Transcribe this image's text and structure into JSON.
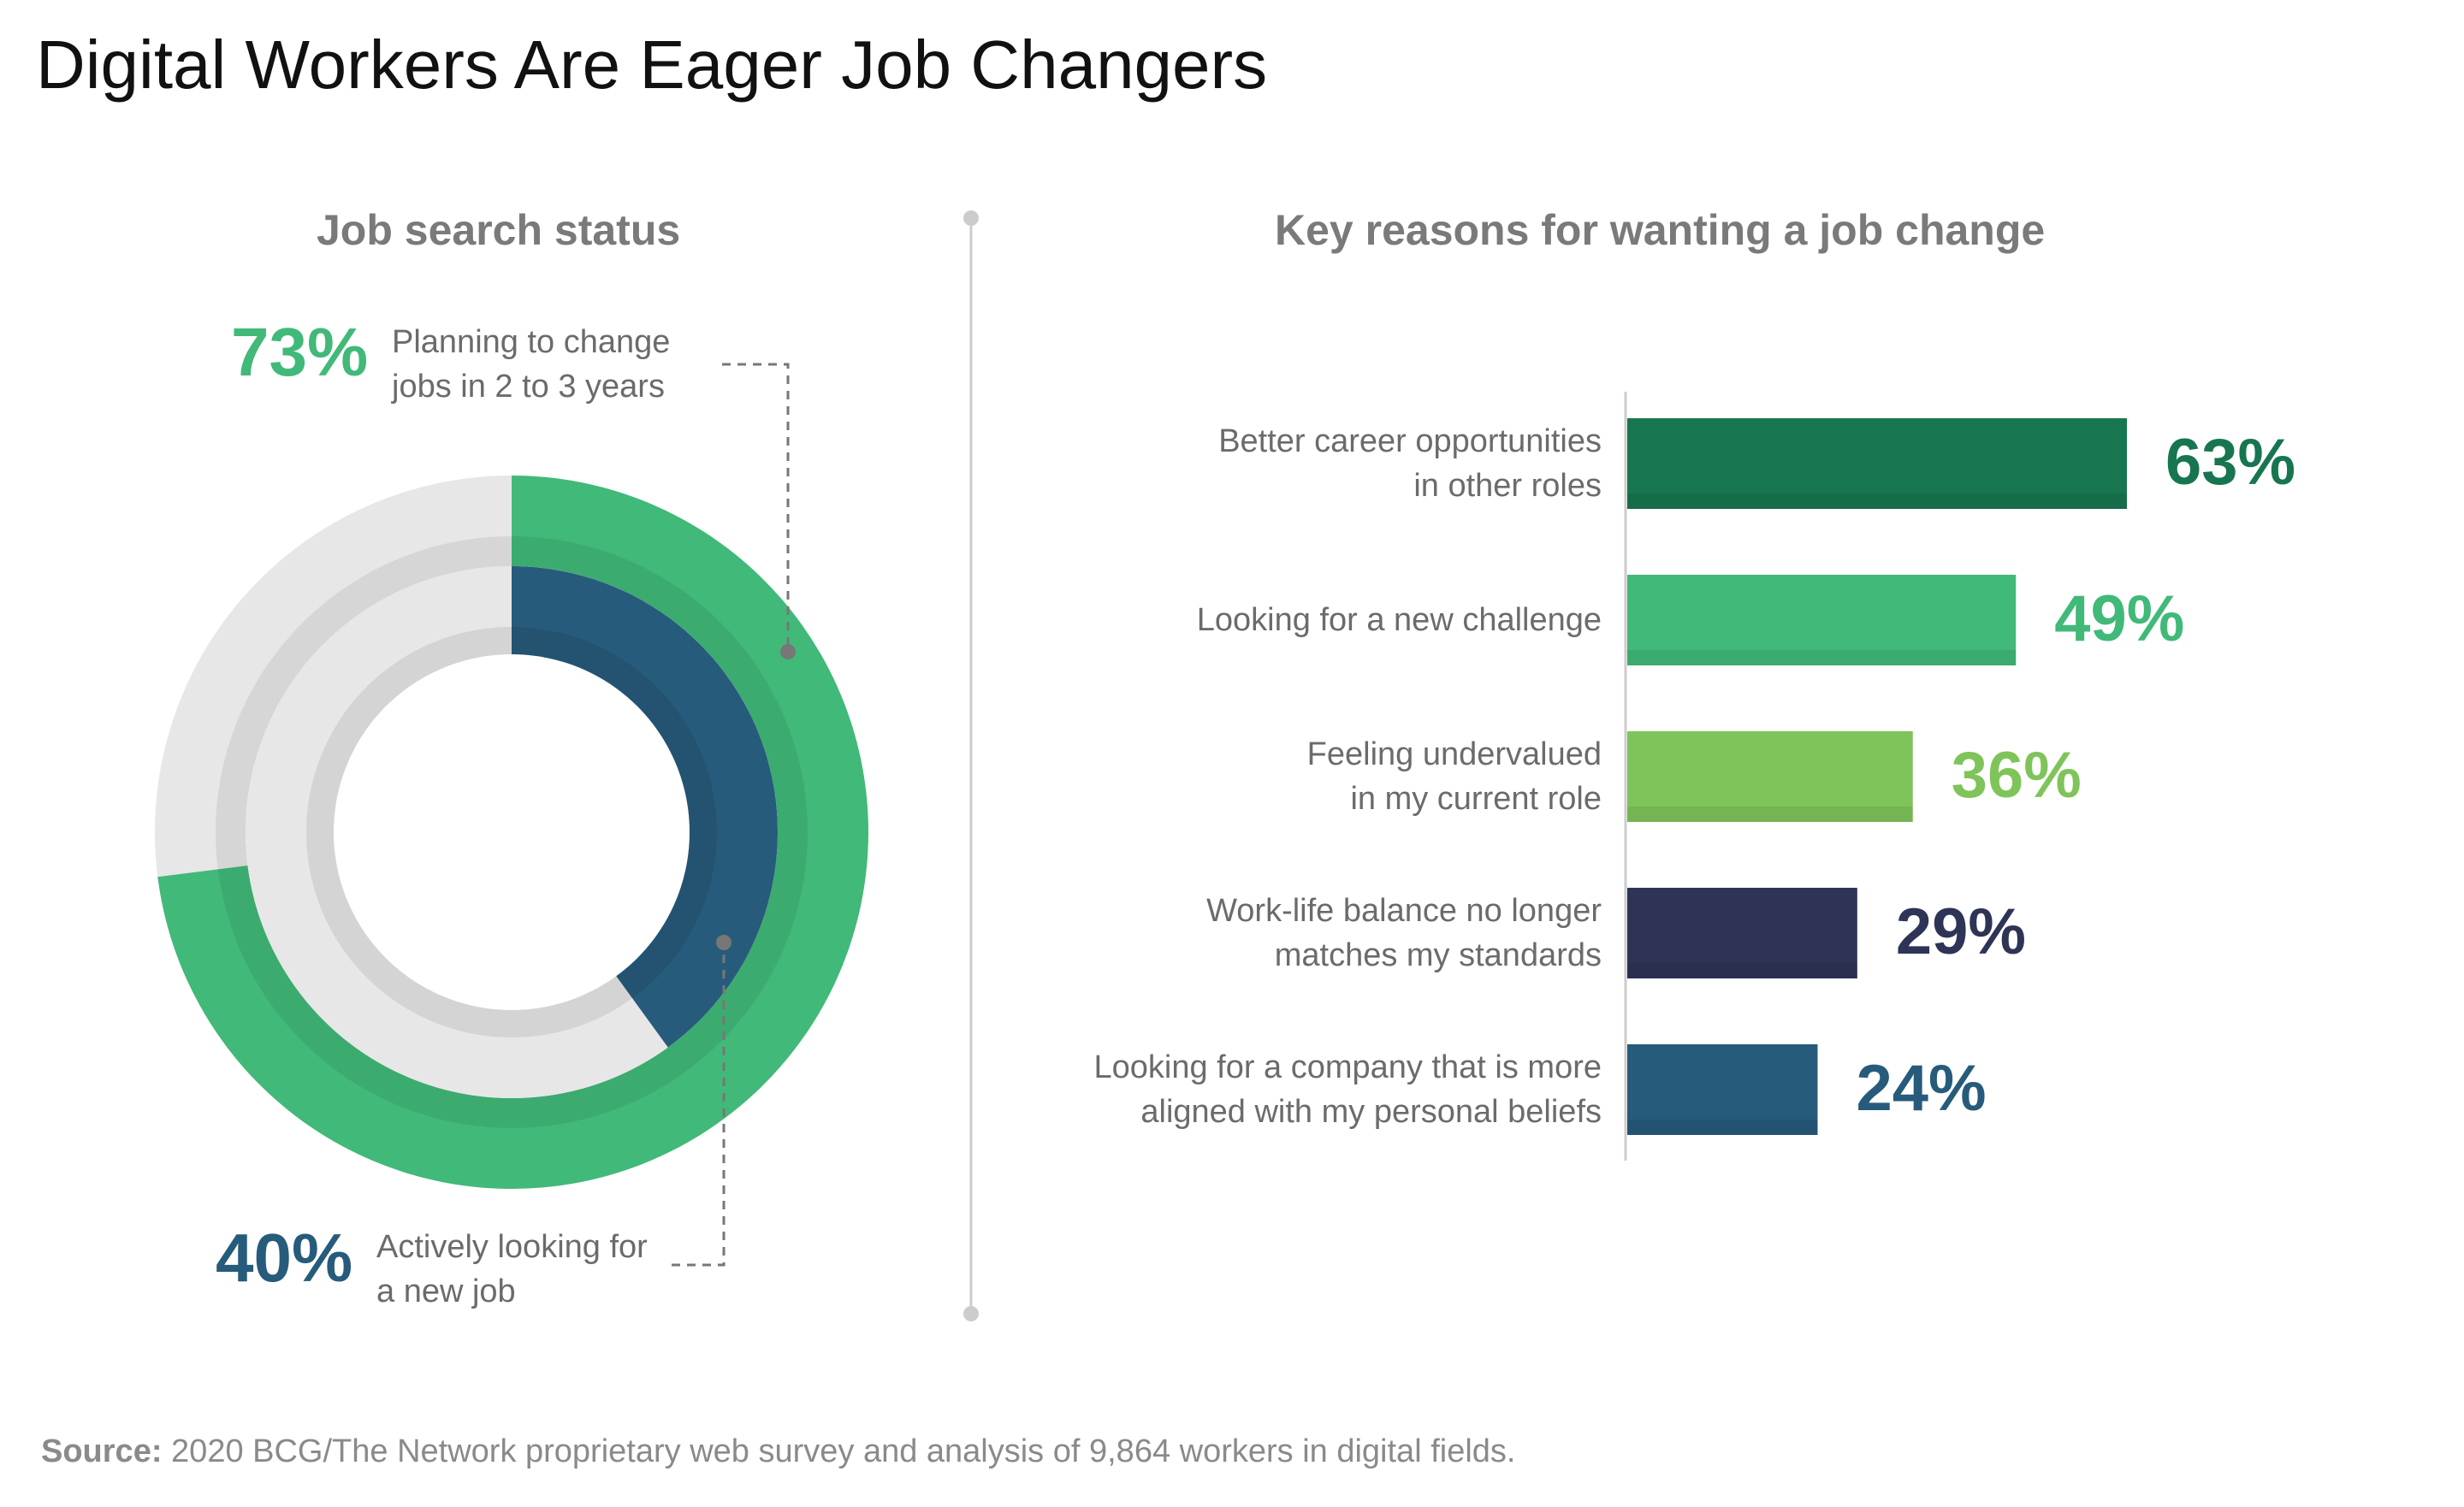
{
  "title": "Digital Workers Are Eager Job Changers",
  "source": {
    "label": "Source:",
    "text": "2020 BCG/The Network proprietary web survey and analysis of 9,864 workers in digital fields."
  },
  "colors": {
    "dark_green": "#177650",
    "green": "#41b978",
    "light_green": "#7fc45a",
    "navy": "#2e3456",
    "blue": "#275b7b",
    "ring_gray": "#e7e7e7"
  },
  "chart_data": [
    {
      "type": "pie",
      "title": "Job search status",
      "series": [
        {
          "name": "Planning to change jobs in 2 to 3 years",
          "value": 73,
          "label": "73%",
          "color": "#41b978"
        },
        {
          "name": "Actively looking for a new job",
          "value": 40,
          "label": "40%",
          "color": "#275b7b"
        }
      ],
      "max": 100
    },
    {
      "type": "bar",
      "orientation": "horizontal",
      "title": "Key reasons for wanting a job change",
      "categories": [
        "Better career opportunities in other roles",
        "Looking for a new challenge",
        "Feeling undervalued in my current role",
        "Work-life balance no longer matches my standards",
        "Looking for a company that is more aligned with my personal beliefs"
      ],
      "category_lines": [
        [
          "Better career opportunities",
          "in other roles"
        ],
        [
          "Looking for a new challenge"
        ],
        [
          "Feeling undervalued",
          "in my current role"
        ],
        [
          "Work-life balance no longer",
          "matches my standards"
        ],
        [
          "Looking for a company that is more",
          "aligned with my personal beliefs"
        ]
      ],
      "values": [
        63,
        49,
        36,
        29,
        24
      ],
      "labels": [
        "63%",
        "49%",
        "36%",
        "29%",
        "24%"
      ],
      "colors": [
        "#177650",
        "#41b978",
        "#7fc45a",
        "#2e3456",
        "#275b7b"
      ]
    }
  ]
}
